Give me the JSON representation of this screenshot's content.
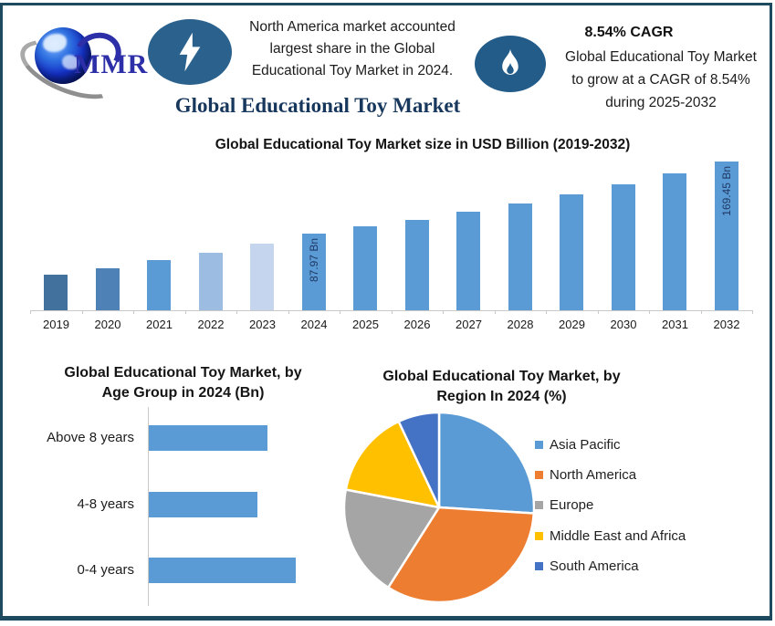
{
  "header": {
    "logo_text": "MMR",
    "left_callout_lines": [
      "North America market accounted",
      "largest share in the Global",
      "Educational Toy Market in 2024."
    ],
    "title": "Global Educational Toy Market",
    "cagr_heading": "8.54% CAGR",
    "right_callout_lines": [
      "Global Educational Toy Market",
      "to grow at a CAGR of 8.54%",
      "during 2025-2032"
    ]
  },
  "colors": {
    "frame_border": "#1E4A5F",
    "badge_blue": "#2B618D",
    "title_navy": "#17375D",
    "bar_blue": "#5B9BD5",
    "bar_label_navy": "#1F3864",
    "axis_gray": "#C9C9C9"
  },
  "chart_data": [
    {
      "id": "market_size",
      "type": "bar",
      "title": "Global Educational Toy Market size in USD Billion (2019-2032)",
      "categories": [
        "2019",
        "2020",
        "2021",
        "2022",
        "2023",
        "2024",
        "2025",
        "2026",
        "2027",
        "2028",
        "2029",
        "2030",
        "2031",
        "2032"
      ],
      "values": [
        40.8,
        48.3,
        56.9,
        65.4,
        76.2,
        87.97,
        95.5,
        103.6,
        112.5,
        122.1,
        132.5,
        143.8,
        156.1,
        169.45
      ],
      "values_note": "2024 and 2032 labeled on chart; other years estimated from bar heights and 8.54% CAGR",
      "data_labels": {
        "2024": "87.97 Bn",
        "2032": "169.45 Bn"
      },
      "bar_colors": [
        "#41719C",
        "#4E81B5",
        "#5B9BD5",
        "#9CBCE2",
        "#C5D5ED",
        "#5B9BD5",
        "#5B9BD5",
        "#5B9BD5",
        "#5B9BD5",
        "#5B9BD5",
        "#5B9BD5",
        "#5B9BD5",
        "#5B9BD5",
        "#5B9BD5"
      ],
      "ylabel": "USD Billion",
      "ylim": [
        0,
        175
      ],
      "grid": false
    },
    {
      "id": "age_group",
      "type": "bar",
      "orientation": "horizontal",
      "title": "Global Educational Toy Market, by Age Group in 2024 (Bn)",
      "title_lines": [
        "Global Educational Toy Market, by",
        "Age Group in 2024 (Bn)"
      ],
      "categories": [
        "Above 8 years",
        "4-8 years",
        "0-4 years"
      ],
      "values": [
        28,
        25.5,
        34.5
      ],
      "values_note": "no value axis shown; values estimated from bar lengths",
      "bar_color": "#5B9BD5",
      "grid": false
    },
    {
      "id": "region_share",
      "type": "pie",
      "title": "Global Educational Toy Market, by Region In 2024 (%)",
      "title_lines": [
        "Global Educational Toy Market, by",
        "Region In 2024 (%)"
      ],
      "labels": [
        "Asia Pacific",
        "North America",
        "Europe",
        "Middle East and Africa",
        "South America"
      ],
      "values": [
        26,
        33,
        19,
        15,
        7
      ],
      "values_note": "percentages estimated from slice angles",
      "colors": [
        "#5B9BD5",
        "#ED7D31",
        "#A5A5A5",
        "#FFC000",
        "#4472C4"
      ],
      "legend_position": "right",
      "start_angle_deg": 0,
      "direction": "clockwise"
    }
  ]
}
